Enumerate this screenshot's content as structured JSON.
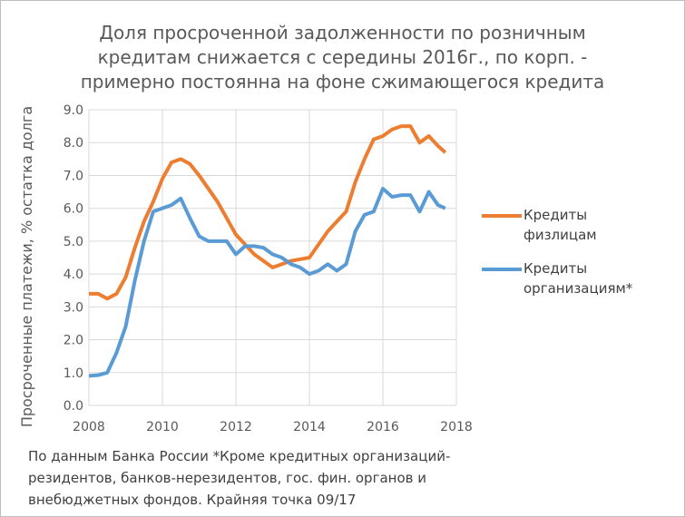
{
  "chart_data": {
    "type": "line",
    "title": [
      "Доля просроченной задолженности по розничным",
      "кредитам снижается с середины 2016г., по корп. -",
      "примерно постоянна на фоне сжимающегося кредита"
    ],
    "y_label": "Просроченные платежи, % остатка долга",
    "footnote": [
      "По данным Банка России *Кроме кредитных организаций-",
      "резидентов, банков-нерезидентов, гос. фин. органов и",
      "внебюджетных фондов. Крайняя точка 09/17"
    ],
    "x": [
      2008.0,
      2008.25,
      2008.5,
      2008.75,
      2009.0,
      2009.25,
      2009.5,
      2009.75,
      2010.0,
      2010.25,
      2010.5,
      2010.75,
      2011.0,
      2011.25,
      2011.5,
      2011.75,
      2012.0,
      2012.25,
      2012.5,
      2012.75,
      2013.0,
      2013.25,
      2013.5,
      2013.75,
      2014.0,
      2014.25,
      2014.5,
      2014.75,
      2015.0,
      2015.25,
      2015.5,
      2015.75,
      2016.0,
      2016.25,
      2016.5,
      2016.75,
      2017.0,
      2017.25,
      2017.5,
      2017.7
    ],
    "series": [
      {
        "name": "Кредиты физлицам",
        "color": "#ed7d31",
        "values": [
          3.4,
          3.4,
          3.25,
          3.4,
          3.9,
          4.8,
          5.6,
          6.2,
          6.9,
          7.4,
          7.5,
          7.35,
          7.0,
          6.6,
          6.2,
          5.7,
          5.2,
          4.9,
          4.6,
          4.4,
          4.2,
          4.3,
          4.4,
          4.45,
          4.5,
          4.9,
          5.3,
          5.6,
          5.9,
          6.8,
          7.5,
          8.1,
          8.2,
          8.4,
          8.5,
          8.5,
          8.0,
          8.2,
          7.9,
          7.7
        ]
      },
      {
        "name": "Кредиты организациям*",
        "color": "#5b9bd5",
        "values": [
          0.9,
          0.92,
          1.0,
          1.6,
          2.4,
          3.8,
          5.0,
          5.9,
          6.0,
          6.1,
          6.3,
          5.7,
          5.15,
          5.0,
          5.0,
          5.0,
          4.6,
          4.85,
          4.85,
          4.8,
          4.6,
          4.5,
          4.3,
          4.2,
          4.0,
          4.1,
          4.3,
          4.1,
          4.3,
          5.3,
          5.8,
          5.9,
          6.6,
          6.35,
          6.4,
          6.4,
          5.9,
          6.5,
          6.1,
          6.0
        ]
      }
    ],
    "xlim": [
      2008,
      2018
    ],
    "xticks": [
      2008,
      2010,
      2012,
      2014,
      2016,
      2018
    ],
    "ylim": [
      0,
      9
    ],
    "yticks": [
      {
        "value": 0,
        "label": "0.0"
      },
      {
        "value": 1,
        "label": "1.0"
      },
      {
        "value": 2,
        "label": "2.0"
      },
      {
        "value": 3,
        "label": "3.0"
      },
      {
        "value": 4,
        "label": "4.0"
      },
      {
        "value": 5,
        "label": "5.0"
      },
      {
        "value": 6,
        "label": "6.0"
      },
      {
        "value": 7,
        "label": "7.0"
      },
      {
        "value": 8,
        "label": "8.0"
      },
      {
        "value": 9,
        "label": "9.0"
      }
    ],
    "grid": true
  }
}
